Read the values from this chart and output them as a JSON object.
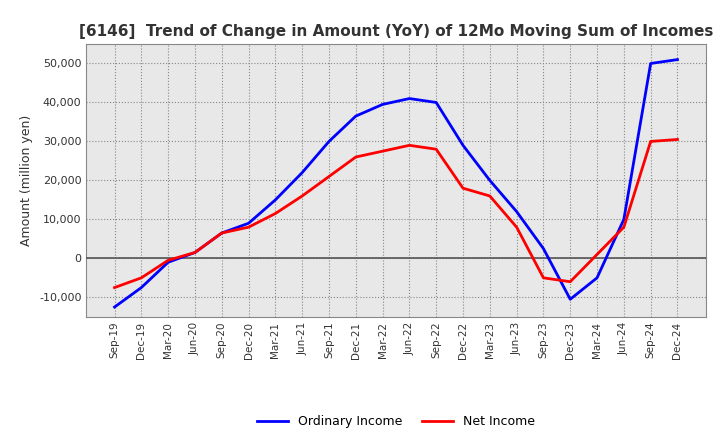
{
  "title": "[6146]  Trend of Change in Amount (YoY) of 12Mo Moving Sum of Incomes",
  "ylabel": "Amount (million yen)",
  "x_labels": [
    "Sep-19",
    "Dec-19",
    "Mar-20",
    "Jun-20",
    "Sep-20",
    "Dec-20",
    "Mar-21",
    "Jun-21",
    "Sep-21",
    "Dec-21",
    "Mar-22",
    "Jun-22",
    "Sep-22",
    "Dec-22",
    "Mar-23",
    "Jun-23",
    "Sep-23",
    "Dec-23",
    "Mar-24",
    "Jun-24",
    "Sep-24",
    "Dec-24"
  ],
  "ordinary_income": [
    -12500,
    -7500,
    -1000,
    1500,
    6500,
    9000,
    15000,
    22000,
    30000,
    36500,
    39500,
    41000,
    40000,
    29000,
    20000,
    12000,
    2500,
    -10500,
    -5000,
    10000,
    50000,
    51000
  ],
  "net_income": [
    -7500,
    -5000,
    -500,
    1500,
    6500,
    8000,
    11500,
    16000,
    21000,
    26000,
    27500,
    29000,
    28000,
    18000,
    16000,
    8000,
    -5000,
    -6000,
    1000,
    8000,
    30000,
    30500
  ],
  "ordinary_color": "#0000FF",
  "net_color": "#FF0000",
  "ylim": [
    -15000,
    55000
  ],
  "yticks": [
    -10000,
    0,
    10000,
    20000,
    30000,
    40000,
    50000
  ],
  "plot_bg_color": "#E8E8E8",
  "fig_bg_color": "#FFFFFF",
  "grid_color": "#888888",
  "zero_line_color": "#555555",
  "title_color": "#333333"
}
